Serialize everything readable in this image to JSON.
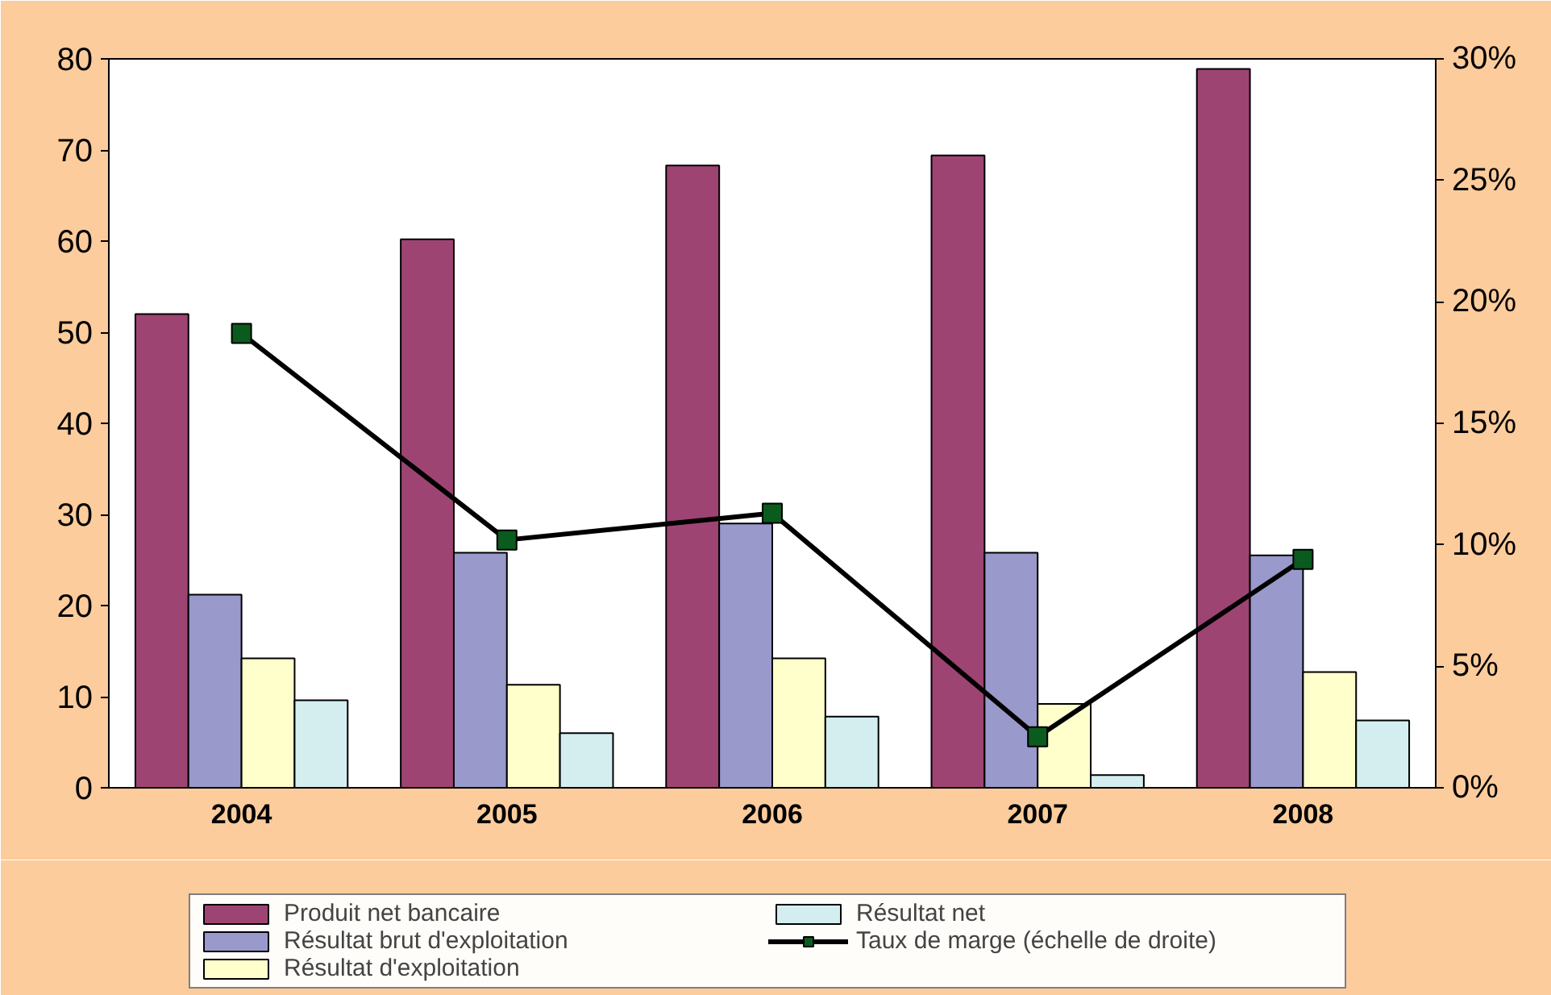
{
  "chart_data": {
    "type": "bar",
    "categories": [
      "2004",
      "2005",
      "2006",
      "2007",
      "2008"
    ],
    "series": [
      {
        "name": "Produit net bancaire",
        "color": "#9e4473",
        "values": [
          52.0,
          60.2,
          68.3,
          69.4,
          78.9
        ]
      },
      {
        "name": "Résultat brut d'exploitation",
        "color": "#9999cc",
        "values": [
          21.2,
          25.8,
          29.0,
          25.8,
          25.5
        ]
      },
      {
        "name": "Résultat d'exploitation",
        "color": "#ffffcc",
        "values": [
          14.2,
          11.3,
          14.2,
          9.2,
          12.7
        ]
      },
      {
        "name": "Résultat net",
        "color": "#d4eef0",
        "values": [
          9.6,
          6.0,
          7.8,
          1.4,
          7.4
        ]
      },
      {
        "name": "Taux de marge (échelle de droite)",
        "type": "line",
        "axis": "y2",
        "color": "#000000",
        "marker": "square",
        "values": [
          18.7,
          10.2,
          11.3,
          2.1,
          9.4
        ]
      }
    ],
    "ylim": [
      0,
      80
    ],
    "yticks": [
      0,
      10,
      20,
      30,
      40,
      50,
      60,
      70,
      80
    ],
    "y2lim": [
      0,
      30
    ],
    "y2ticks": [
      {
        "value": 0,
        "label": "0%"
      },
      {
        "value": 5,
        "label": "5%"
      },
      {
        "value": 10,
        "label": "10%"
      },
      {
        "value": 15,
        "label": "15%"
      },
      {
        "value": 20,
        "label": "20%"
      },
      {
        "value": 25,
        "label": "25%"
      },
      {
        "value": 30,
        "label": "30%"
      }
    ],
    "grid": false,
    "legend": "bottom"
  }
}
